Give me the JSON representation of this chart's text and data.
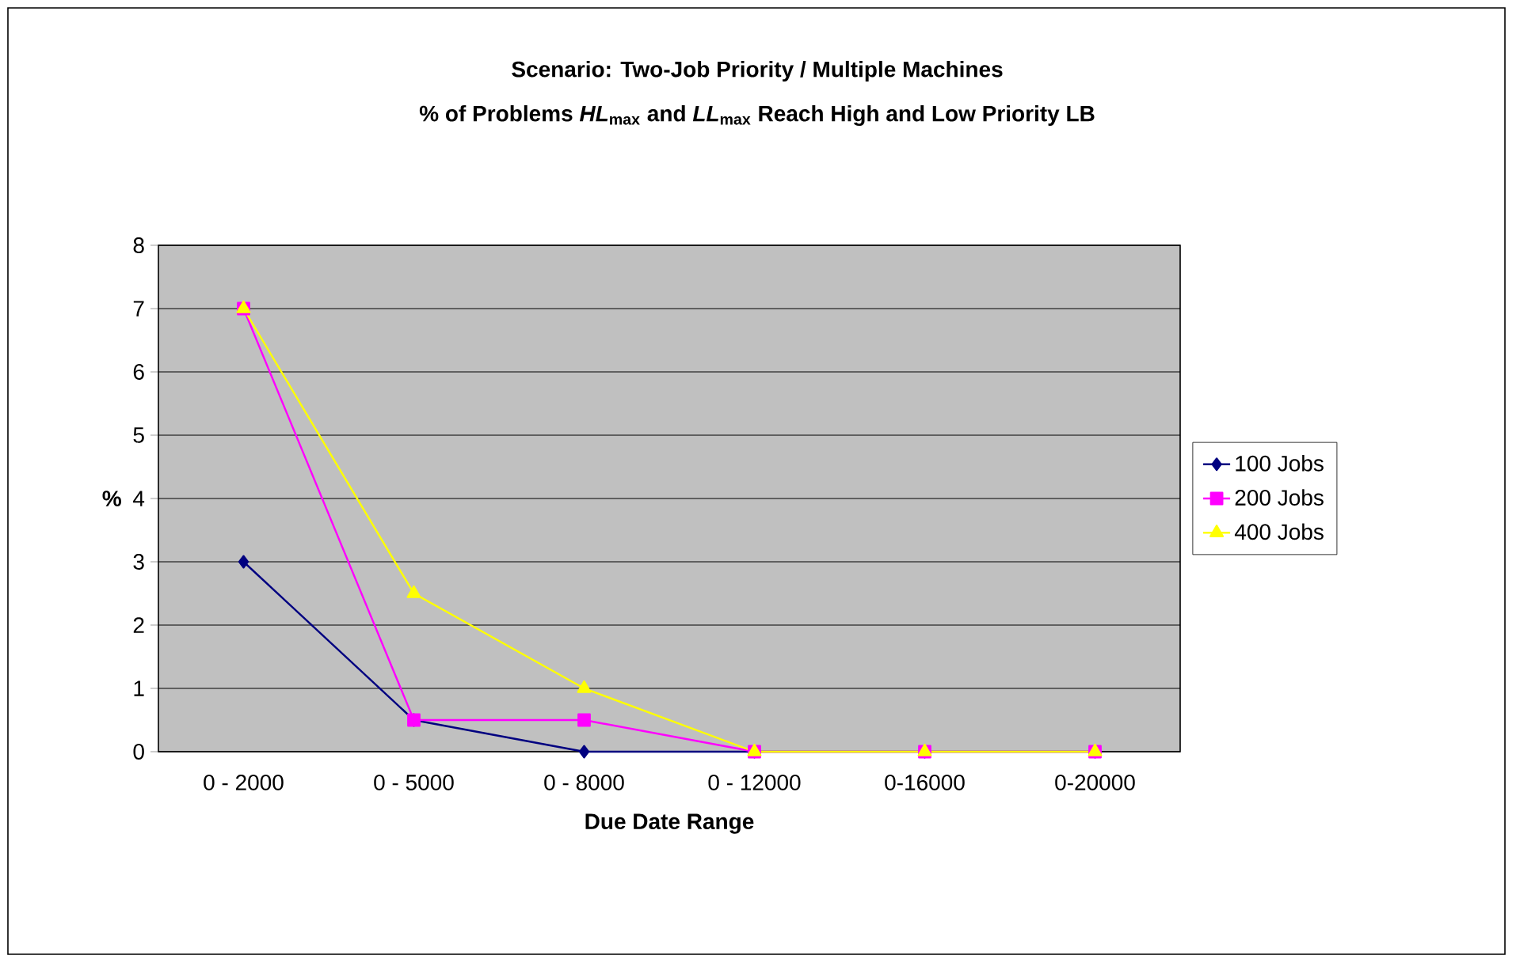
{
  "chart_data": {
    "type": "line",
    "title": "Scenario: Two-Job Priority / Multiple Machines",
    "subtitle": "% of Problems *HL*$_{max}$ and *LL*$_{max}$ Reach High and Low Priority LB",
    "xlabel": "Due Date Range",
    "ylabel": "%",
    "categories": [
      "0 - 2000",
      "0 - 5000",
      "0 - 8000",
      "0 - 12000",
      "0-16000",
      "0-20000"
    ],
    "series": [
      {
        "name": "100 Jobs",
        "color": "#000080",
        "marker": "diamond",
        "values": [
          3,
          0.5,
          0,
          0,
          0,
          0
        ]
      },
      {
        "name": "200 Jobs",
        "color": "#ff00ff",
        "marker": "square",
        "values": [
          7,
          0.5,
          0.5,
          0,
          0,
          0
        ]
      },
      {
        "name": "400 Jobs",
        "color": "#ffff00",
        "marker": "triangle",
        "values": [
          7,
          2.5,
          1,
          0,
          0,
          0
        ]
      }
    ],
    "ylim": [
      0,
      8
    ],
    "yticks": [
      0,
      1,
      2,
      3,
      4,
      5,
      6,
      7,
      8
    ],
    "grid": "y",
    "legend": "right",
    "line_style": "solid"
  }
}
